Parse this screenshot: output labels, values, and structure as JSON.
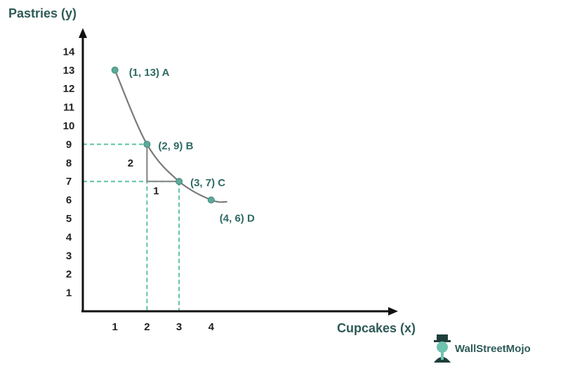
{
  "chart_data": {
    "type": "line",
    "ylabel": "Pastries (y)",
    "xlabel": "Cupcakes (x)",
    "x_ticks": [
      "1",
      "2",
      "3",
      "4"
    ],
    "y_ticks": [
      "1",
      "2",
      "3",
      "4",
      "5",
      "6",
      "7",
      "8",
      "9",
      "10",
      "11",
      "12",
      "13",
      "14"
    ],
    "xlim": [
      0,
      4.9
    ],
    "ylim": [
      0,
      14.5
    ],
    "points": [
      {
        "x": 1,
        "y": 13,
        "label": "(1, 13) A"
      },
      {
        "x": 2,
        "y": 9,
        "label": "(2, 9) B"
      },
      {
        "x": 3,
        "y": 7,
        "label": "(3, 7) C"
      },
      {
        "x": 4,
        "y": 6,
        "label": "(4, 6) D"
      }
    ],
    "curve_end": {
      "x": 4.5,
      "y": 5.9
    },
    "annotations": [
      {
        "text": "2",
        "x": 1.7,
        "y": 8
      },
      {
        "text": "1",
        "x": 2.5,
        "y": 6.5
      }
    ],
    "guide_points": [
      {
        "x": 2,
        "y": 9
      },
      {
        "x": 3,
        "y": 7
      }
    ],
    "colors": {
      "curve": "#7a7a7a",
      "point": "#5ea99a",
      "guide": "#5ec2a8",
      "axis": "#111111",
      "label": "#2e6a64"
    }
  },
  "brand": {
    "name": "WallStreetMojo"
  }
}
